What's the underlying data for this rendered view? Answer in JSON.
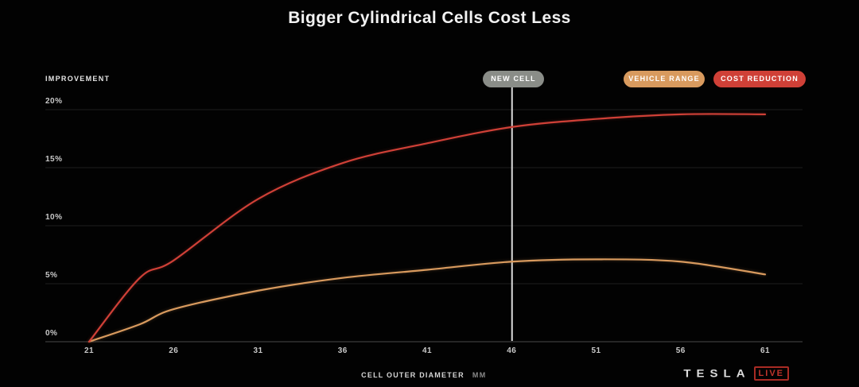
{
  "title": "Bigger Cylindrical Cells Cost Less",
  "legend": {
    "new_cell_label": "NEW CELL",
    "vehicle_range_label": "VEHICLE RANGE",
    "cost_reduction_label": "COST REDUCTION"
  },
  "brand": {
    "name": "TESLA",
    "badge": "LIVE"
  },
  "colors": {
    "background": "#020202",
    "grid": "#1e1e1e",
    "baseline": "#4a4a4a",
    "tick_text": "#c9c9c9",
    "title_text": "#f2f2f2",
    "new_cell_line": "#d9d9d9",
    "new_cell_pill": "#8a8d88",
    "vehicle_range": "#d89a5e",
    "cost_reduction": "#cf4037"
  },
  "chart_data": {
    "type": "line",
    "title": "Bigger Cylindrical Cells Cost Less",
    "xlabel": "CELL OUTER DIAMETER",
    "x_unit": "MM",
    "ylabel": "IMPROVEMENT",
    "xlim": [
      18.4,
      63.2
    ],
    "ylim": [
      0,
      20
    ],
    "grid": true,
    "legend_position": "top-right",
    "x_ticks": [
      21,
      26,
      31,
      36,
      41,
      46,
      51,
      56,
      61
    ],
    "y_ticks": [
      {
        "label": "20%",
        "value": 20
      },
      {
        "label": "15%",
        "value": 15
      },
      {
        "label": "10%",
        "value": 10
      },
      {
        "label": "5%",
        "value": 5
      },
      {
        "label": "0%",
        "value": 0
      }
    ],
    "x": [
      21,
      24,
      26,
      31,
      36,
      41,
      46,
      51,
      56,
      61
    ],
    "series": [
      {
        "name": "VEHICLE RANGE",
        "color": "#d89a5e",
        "values": [
          0,
          1.5,
          2.8,
          4.4,
          5.5,
          6.2,
          6.9,
          7.1,
          6.9,
          5.8
        ]
      },
      {
        "name": "COST REDUCTION",
        "color": "#cf4037",
        "values": [
          0,
          5.5,
          7.0,
          12.3,
          15.4,
          17.1,
          18.5,
          19.2,
          19.6,
          19.6
        ]
      }
    ],
    "annotation": {
      "label": "NEW CELL",
      "x": 46,
      "pill_color": "#8a8d88",
      "line_color": "#d9d9d9"
    }
  }
}
